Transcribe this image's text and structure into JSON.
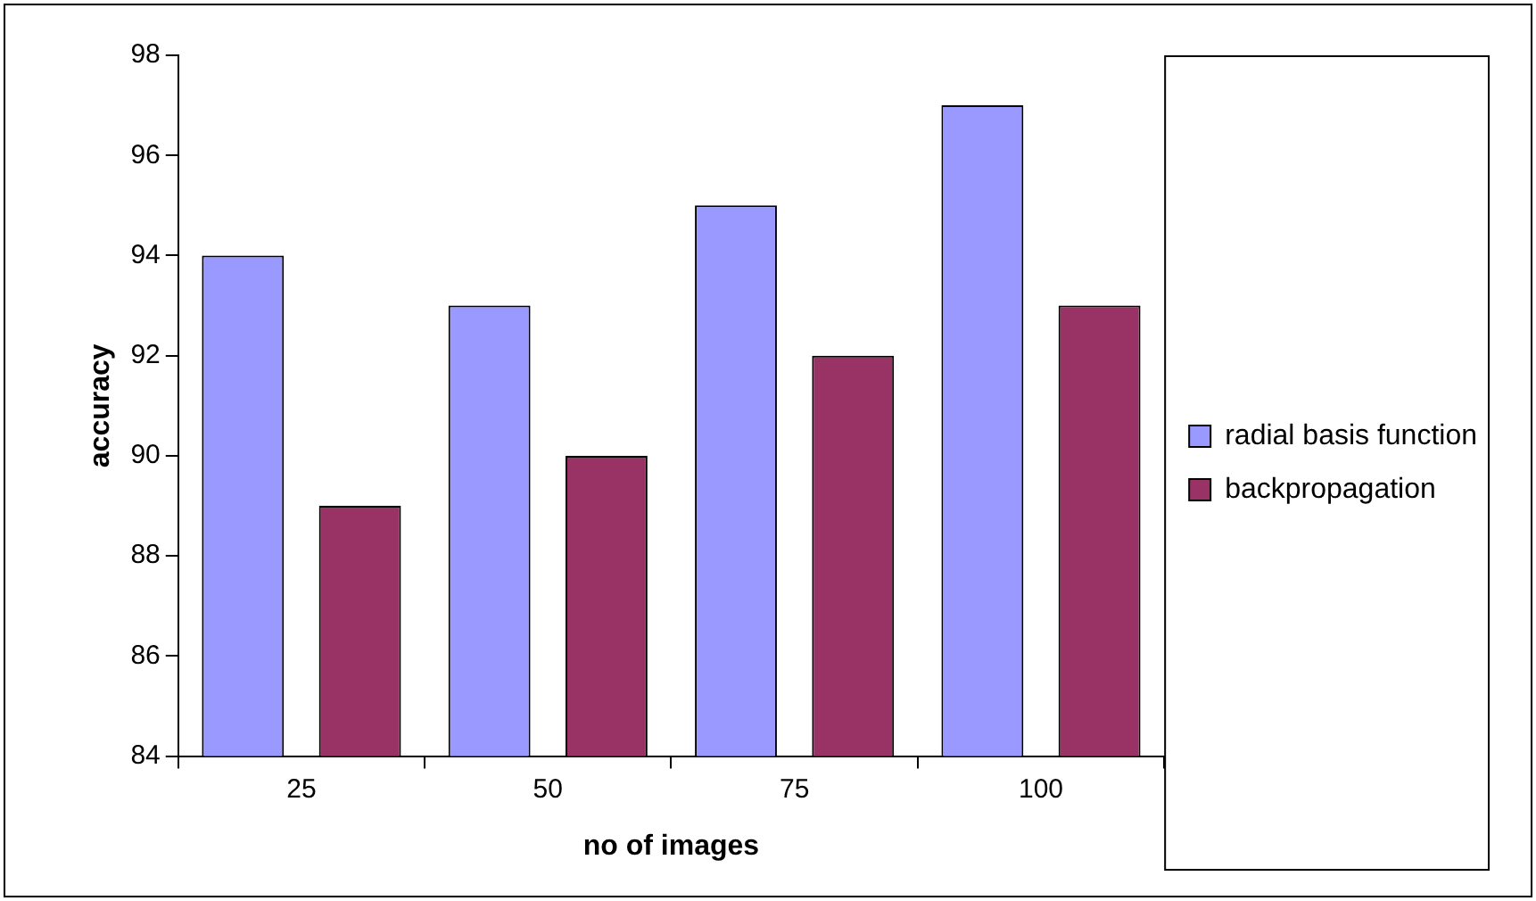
{
  "chart_data": {
    "type": "bar",
    "xlabel": "no of images",
    "ylabel": "accuracy",
    "categories": [
      "25",
      "50",
      "75",
      "100"
    ],
    "series": [
      {
        "name": "radial basis function",
        "color": "#9999ff",
        "values": [
          94,
          93,
          95,
          97
        ]
      },
      {
        "name": "backpropagation",
        "color": "#993366",
        "values": [
          89,
          90,
          92,
          93
        ]
      }
    ],
    "ylim": [
      84,
      98
    ],
    "yticks": [
      84,
      86,
      88,
      90,
      92,
      94,
      96,
      98
    ],
    "grid": false,
    "legend": "right"
  }
}
